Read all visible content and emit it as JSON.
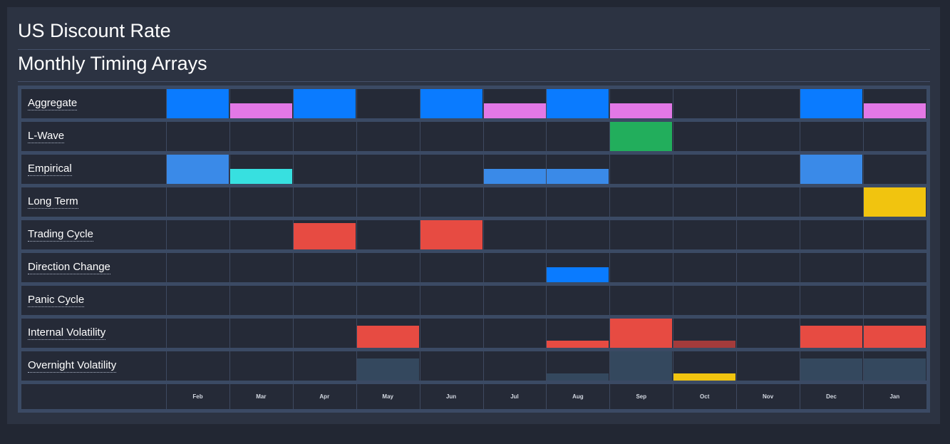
{
  "header": {
    "title": "US Discount Rate",
    "subtitle": "Monthly Timing Arrays"
  },
  "colors": {
    "blue": "#0a7bff",
    "pink": "#e278e6",
    "green": "#22ae5c",
    "lightblue": "#3a8ae8",
    "cyan": "#37e0e0",
    "yellow": "#f1c40f",
    "red": "#e74b42",
    "darkred": "#a33b3b",
    "slate": "#34485e"
  },
  "chart_data": {
    "type": "heatmap",
    "categories": [
      "Feb",
      "Mar",
      "Apr",
      "May",
      "Jun",
      "Jul",
      "Aug",
      "Sep",
      "Oct",
      "Nov",
      "Dec",
      "Jan"
    ],
    "series": [
      {
        "name": "Aggregate",
        "values": [
          1,
          0.5,
          1,
          0,
          1,
          0.5,
          1,
          0.5,
          0,
          0,
          1,
          0.5
        ],
        "colors": [
          "blue",
          "pink",
          "blue",
          "",
          "blue",
          "pink",
          "blue",
          "pink",
          "",
          "",
          "blue",
          "pink"
        ]
      },
      {
        "name": "L-Wave",
        "values": [
          0,
          0,
          0,
          0,
          0,
          0,
          0,
          1,
          0,
          0,
          0,
          0
        ],
        "colors": [
          "",
          "",
          "",
          "",
          "",
          "",
          "",
          "green",
          "",
          "",
          "",
          ""
        ]
      },
      {
        "name": "Empirical",
        "values": [
          1,
          0.5,
          0,
          0,
          0,
          0.5,
          0.5,
          0,
          0,
          0,
          1,
          0
        ],
        "colors": [
          "lightblue",
          "cyan",
          "",
          "",
          "",
          "lightblue",
          "lightblue",
          "",
          "",
          "",
          "lightblue",
          ""
        ]
      },
      {
        "name": "Long Term",
        "values": [
          0,
          0,
          0,
          0,
          0,
          0,
          0,
          0,
          0,
          0,
          0,
          1
        ],
        "colors": [
          "",
          "",
          "",
          "",
          "",
          "",
          "",
          "",
          "",
          "",
          "",
          "yellow"
        ]
      },
      {
        "name": "Trading Cycle",
        "values": [
          0,
          0,
          0.9,
          0,
          1,
          0,
          0,
          0,
          0,
          0,
          0,
          0
        ],
        "colors": [
          "",
          "",
          "red",
          "",
          "red",
          "",
          "",
          "",
          "",
          "",
          "",
          ""
        ]
      },
      {
        "name": "Direction Change",
        "values": [
          0,
          0,
          0,
          0,
          0,
          0,
          0.5,
          0,
          0,
          0,
          0,
          0
        ],
        "colors": [
          "",
          "",
          "",
          "",
          "",
          "",
          "blue",
          "",
          "",
          "",
          "",
          ""
        ]
      },
      {
        "name": "Panic Cycle",
        "values": [
          0,
          0,
          0,
          0,
          0,
          0,
          0,
          0,
          0,
          0,
          0,
          0
        ],
        "colors": [
          "",
          "",
          "",
          "",
          "",
          "",
          "",
          "",
          "",
          "",
          "",
          ""
        ]
      },
      {
        "name": "Internal Volatility",
        "values": [
          0,
          0,
          0,
          0.75,
          0,
          0,
          0.25,
          1,
          0.25,
          0,
          0.75,
          0.75
        ],
        "colors": [
          "",
          "",
          "",
          "red",
          "",
          "",
          "red",
          "red",
          "darkred",
          "",
          "red",
          "red"
        ]
      },
      {
        "name": "Overnight Volatility",
        "values": [
          0,
          0,
          0,
          0.75,
          0,
          0,
          0.25,
          1,
          0.25,
          0,
          0.75,
          0.75
        ],
        "colors": [
          "",
          "",
          "",
          "slate",
          "",
          "",
          "slate",
          "slate",
          "yellow",
          "",
          "slate",
          "slate"
        ]
      }
    ]
  }
}
